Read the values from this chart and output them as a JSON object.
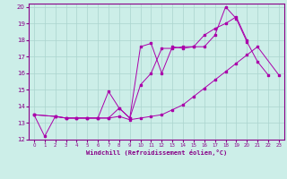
{
  "xlabel": "Windchill (Refroidissement éolien,°C)",
  "background_color": "#cceee8",
  "grid_color": "#aad4ce",
  "line_color": "#aa00aa",
  "xlim": [
    -0.5,
    23.5
  ],
  "ylim": [
    12,
    20.2
  ],
  "xticks": [
    0,
    1,
    2,
    3,
    4,
    5,
    6,
    7,
    8,
    9,
    10,
    11,
    12,
    13,
    14,
    15,
    16,
    17,
    18,
    19,
    20,
    21,
    22,
    23
  ],
  "yticks": [
    12,
    13,
    14,
    15,
    16,
    17,
    18,
    19,
    20
  ],
  "line1_x": [
    0,
    1,
    2,
    3,
    4,
    5,
    6,
    7,
    8,
    9,
    10,
    11,
    12,
    13,
    14,
    15,
    16,
    17,
    18,
    19,
    20,
    21,
    22
  ],
  "line1_y": [
    13.5,
    12.2,
    13.4,
    13.3,
    13.3,
    13.3,
    13.3,
    13.3,
    13.9,
    13.3,
    17.6,
    17.8,
    16.0,
    17.6,
    17.5,
    17.6,
    17.6,
    18.3,
    20.0,
    19.3,
    17.9,
    16.7,
    15.9
  ],
  "line2_x": [
    0,
    2,
    3,
    4,
    5,
    6,
    7,
    8,
    9,
    10,
    11,
    12,
    13,
    14,
    15,
    16,
    17,
    18,
    19,
    20
  ],
  "line2_y": [
    13.5,
    13.4,
    13.3,
    13.3,
    13.3,
    13.3,
    14.9,
    13.9,
    13.3,
    15.3,
    16.0,
    17.5,
    17.5,
    17.6,
    17.6,
    18.3,
    18.7,
    19.0,
    19.4,
    18.0
  ],
  "line3_x": [
    0,
    2,
    3,
    4,
    5,
    6,
    7,
    8,
    9,
    10,
    11,
    12,
    13,
    14,
    15,
    16,
    17,
    18,
    19,
    20,
    21,
    23
  ],
  "line3_y": [
    13.5,
    13.4,
    13.3,
    13.3,
    13.3,
    13.3,
    13.3,
    13.4,
    13.2,
    13.3,
    13.4,
    13.5,
    13.8,
    14.1,
    14.6,
    15.1,
    15.6,
    16.1,
    16.6,
    17.1,
    17.6,
    15.9
  ]
}
